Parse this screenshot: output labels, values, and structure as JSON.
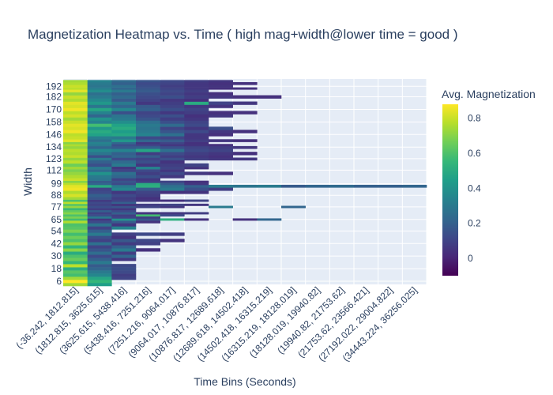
{
  "chart_data": {
    "type": "heatmap",
    "title": "Magnetization Heatmap vs. Time ( high mag+width@lower time = good )",
    "xlabel": "Time Bins (Seconds)",
    "ylabel": "Width",
    "colorbar_title": "Avg. Magnetization",
    "colorscale": "Viridis",
    "colorscale_stops": [
      "#440154",
      "#482878",
      "#3e4989",
      "#31688e",
      "#26828e",
      "#1f9e89",
      "#35b779",
      "#6ece58",
      "#b5de2b",
      "#fde725"
    ],
    "color_range": [
      -0.1,
      0.88
    ],
    "colorbar_ticks": [
      "0",
      "0.2",
      "0.4",
      "0.6",
      "0.8"
    ],
    "colorbar_tick_values": [
      0,
      0.2,
      0.4,
      0.6,
      0.8
    ],
    "x_categories": [
      "(-36.242, 1812.815]",
      "(1812.815, 3625.615]",
      "(3625.615, 5438.416]",
      "(5438.416, 7251.216]",
      "(7251.216, 9064.017]",
      "(9064.017, 10876.817]",
      "(10876.817, 12689.618]",
      "(12689.618, 14502.418]",
      "(14502.418, 16315.219]",
      "(16315.219, 18128.019]",
      "(18128.019, 19940.82]",
      "(19940.82, 21753.62]",
      "(21753.62, 23566.421]",
      "(27192.022, 29004.822]",
      "(34443.224, 36256.025]"
    ],
    "y_tick_labels": [
      "192",
      "182",
      "170",
      "158",
      "146",
      "134",
      "123",
      "112",
      "99",
      "88",
      "77",
      "65",
      "54",
      "42",
      "30",
      "18",
      "6"
    ],
    "y_tick_values": [
      192,
      182,
      170,
      158,
      146,
      134,
      123,
      112,
      99,
      88,
      77,
      65,
      54,
      42,
      30,
      18,
      6
    ],
    "y_range": [
      3,
      199
    ],
    "widths": [
      3,
      6,
      9,
      12,
      15,
      18,
      21,
      24,
      27,
      30,
      33,
      36,
      39,
      42,
      45,
      48,
      51,
      54,
      57,
      60,
      63,
      65,
      67,
      69,
      71,
      73,
      75,
      77,
      79,
      81,
      83,
      85,
      88,
      91,
      94,
      97,
      99,
      101,
      103,
      106,
      109,
      112,
      114,
      117,
      120,
      123,
      125,
      128,
      131,
      134,
      136,
      138,
      140,
      143,
      146,
      149,
      152,
      155,
      158,
      161,
      164,
      167,
      170,
      173,
      176,
      179,
      182,
      185,
      188,
      190,
      192,
      195,
      197
    ],
    "magnetization_rows": [
      [
        0.74,
        0.45,
        null,
        null,
        null,
        null,
        null,
        null,
        null,
        null,
        null,
        null,
        null,
        null,
        null
      ],
      [
        0.88,
        0.55,
        null,
        null,
        null,
        null,
        null,
        null,
        null,
        null,
        null,
        null,
        null,
        null,
        null
      ],
      [
        0.74,
        0.48,
        0.1,
        null,
        null,
        null,
        null,
        null,
        null,
        null,
        null,
        null,
        null,
        null,
        null
      ],
      [
        0.58,
        0.35,
        0.08,
        null,
        null,
        null,
        null,
        null,
        null,
        null,
        null,
        null,
        null,
        null,
        null
      ],
      [
        0.62,
        0.3,
        0.12,
        null,
        null,
        null,
        null,
        null,
        null,
        null,
        null,
        null,
        null,
        null,
        null
      ],
      [
        0.52,
        0.22,
        0.14,
        null,
        null,
        null,
        null,
        null,
        null,
        null,
        null,
        null,
        null,
        null,
        null
      ],
      [
        0.78,
        0.18,
        0.12,
        null,
        null,
        null,
        null,
        null,
        null,
        null,
        null,
        null,
        null,
        null,
        null
      ],
      [
        0.55,
        0.3,
        null,
        null,
        null,
        null,
        null,
        null,
        null,
        null,
        null,
        null,
        null,
        null,
        null
      ],
      [
        0.65,
        0.2,
        0.06,
        null,
        null,
        null,
        null,
        null,
        null,
        null,
        null,
        null,
        null,
        null,
        null
      ],
      [
        0.6,
        0.12,
        0.22,
        null,
        null,
        null,
        null,
        null,
        null,
        null,
        null,
        null,
        null,
        null,
        null
      ],
      [
        0.5,
        0.25,
        0.08,
        null,
        null,
        null,
        null,
        null,
        null,
        null,
        null,
        null,
        null,
        null,
        null
      ],
      [
        0.7,
        0.16,
        0.3,
        0.04,
        null,
        null,
        null,
        null,
        null,
        null,
        null,
        null,
        null,
        null,
        null
      ],
      [
        0.54,
        0.1,
        0.2,
        null,
        null,
        null,
        null,
        null,
        null,
        null,
        null,
        null,
        null,
        null,
        null
      ],
      [
        0.72,
        0.26,
        0.07,
        0.09,
        null,
        null,
        null,
        null,
        null,
        null,
        null,
        null,
        null,
        null,
        null
      ],
      [
        0.6,
        0.09,
        0.17,
        0.11,
        0.05,
        null,
        null,
        null,
        null,
        null,
        null,
        null,
        null,
        null,
        null
      ],
      [
        0.66,
        0.14,
        0.05,
        null,
        null,
        null,
        null,
        null,
        null,
        null,
        null,
        null,
        null,
        null,
        null
      ],
      [
        0.58,
        0.3,
        0.09,
        0.12,
        0.08,
        null,
        null,
        null,
        null,
        null,
        null,
        null,
        null,
        null,
        null
      ],
      [
        0.68,
        0.2,
        null,
        null,
        null,
        null,
        null,
        null,
        null,
        null,
        null,
        null,
        null,
        null,
        null
      ],
      [
        0.62,
        0.1,
        0.34,
        null,
        null,
        null,
        null,
        null,
        null,
        null,
        null,
        null,
        null,
        null,
        null
      ],
      [
        0.6,
        0.28,
        0.06,
        null,
        null,
        null,
        null,
        null,
        null,
        null,
        null,
        null,
        null,
        null,
        null
      ],
      [
        0.76,
        0.12,
        0.18,
        0.05,
        null,
        null,
        null,
        null,
        null,
        null,
        null,
        null,
        null,
        null,
        null
      ],
      [
        0.58,
        0.06,
        0.4,
        0.16,
        0.52,
        0.04,
        null,
        0.04,
        0.22,
        null,
        null,
        null,
        null,
        null,
        null
      ],
      [
        0.68,
        0.3,
        0.1,
        0.08,
        null,
        null,
        null,
        null,
        null,
        null,
        null,
        null,
        null,
        null,
        null
      ],
      [
        0.6,
        0.14,
        0.08,
        0.58,
        0.12,
        null,
        null,
        null,
        null,
        null,
        null,
        null,
        null,
        null,
        null
      ],
      [
        0.7,
        0.09,
        0.2,
        0.05,
        0.06,
        0.08,
        null,
        null,
        null,
        null,
        null,
        null,
        null,
        null,
        null
      ],
      [
        0.64,
        0.2,
        0.12,
        null,
        null,
        null,
        null,
        null,
        null,
        null,
        null,
        null,
        null,
        null,
        null
      ],
      [
        0.56,
        0.08,
        0.06,
        null,
        null,
        null,
        null,
        null,
        null,
        null,
        null,
        null,
        null,
        null,
        null
      ],
      [
        0.72,
        0.14,
        0.16,
        0.1,
        0.06,
        null,
        0.3,
        null,
        null,
        0.22,
        null,
        null,
        null,
        null,
        null
      ],
      [
        0.62,
        0.1,
        0.05,
        0.08,
        0.1,
        0.06,
        null,
        null,
        null,
        null,
        null,
        null,
        null,
        null,
        null
      ],
      [
        0.78,
        0.12,
        0.2,
        null,
        null,
        null,
        null,
        null,
        null,
        null,
        null,
        null,
        null,
        null,
        null
      ],
      [
        0.6,
        0.07,
        0.1,
        0.06,
        0.04,
        0.1,
        null,
        null,
        null,
        null,
        null,
        null,
        null,
        null,
        null
      ],
      [
        0.74,
        0.16,
        0.08,
        0.04,
        null,
        null,
        null,
        null,
        null,
        null,
        null,
        null,
        null,
        null,
        null
      ],
      [
        0.82,
        0.2,
        0.12,
        0.08,
        null,
        null,
        null,
        null,
        null,
        null,
        null,
        null,
        null,
        null,
        null
      ],
      [
        0.76,
        0.12,
        0.06,
        0.1,
        0.04,
        0.05,
        null,
        null,
        null,
        null,
        null,
        null,
        null,
        null,
        null
      ],
      [
        0.86,
        0.1,
        0.35,
        0.18,
        0.3,
        0.14,
        0.08,
        null,
        null,
        null,
        null,
        null,
        null,
        null,
        null
      ],
      [
        0.84,
        0.5,
        0.3,
        0.52,
        0.26,
        0.2,
        0.3,
        0.28,
        0.3,
        0.18,
        0.22,
        0.24,
        0.2,
        0.2,
        0.22
      ],
      [
        0.78,
        0.22,
        0.12,
        0.5,
        0.18,
        0.06,
        null,
        null,
        null,
        null,
        null,
        null,
        null,
        null,
        null
      ],
      [
        0.7,
        0.18,
        0.16,
        0.08,
        0.1,
        0.04,
        null,
        null,
        null,
        null,
        null,
        null,
        null,
        null,
        null
      ],
      [
        0.8,
        0.28,
        0.1,
        0.06,
        null,
        null,
        null,
        null,
        null,
        null,
        null,
        null,
        null,
        null,
        null
      ],
      [
        0.76,
        0.3,
        0.22,
        0.14,
        0.06,
        null,
        null,
        null,
        null,
        null,
        null,
        null,
        null,
        null,
        null
      ],
      [
        0.72,
        0.4,
        0.26,
        0.08,
        0.12,
        0.06,
        0.04,
        null,
        null,
        null,
        null,
        null,
        null,
        null,
        null
      ],
      [
        0.68,
        0.24,
        0.1,
        0.12,
        0.06,
        null,
        null,
        null,
        null,
        null,
        null,
        null,
        null,
        null,
        null
      ],
      [
        0.74,
        0.3,
        0.06,
        0.34,
        0.1,
        0.05,
        null,
        null,
        null,
        null,
        null,
        null,
        null,
        null,
        null
      ],
      [
        0.66,
        0.14,
        0.3,
        0.06,
        0.08,
        0.1,
        null,
        null,
        null,
        null,
        null,
        null,
        null,
        null,
        null
      ],
      [
        0.78,
        0.2,
        0.24,
        0.14,
        0.05,
        null,
        null,
        null,
        null,
        null,
        null,
        null,
        null,
        null,
        null
      ],
      [
        0.72,
        0.3,
        0.12,
        0.1,
        0.14,
        0.08,
        0.06,
        0.06,
        null,
        null,
        null,
        null,
        null,
        null,
        null
      ],
      [
        0.8,
        0.14,
        0.22,
        0.18,
        0.08,
        0.06,
        0.04,
        null,
        null,
        null,
        null,
        null,
        null,
        null,
        null
      ],
      [
        0.76,
        0.28,
        0.2,
        0.08,
        0.12,
        0.08,
        0.06,
        0.04,
        null,
        null,
        null,
        null,
        null,
        null,
        null
      ],
      [
        0.78,
        0.36,
        0.34,
        0.48,
        0.26,
        0.12,
        0.1,
        null,
        null,
        null,
        null,
        null,
        null,
        null,
        null
      ],
      [
        0.72,
        0.22,
        0.18,
        0.2,
        0.14,
        0.1,
        0.08,
        0.06,
        null,
        null,
        null,
        null,
        null,
        null,
        null
      ],
      [
        0.76,
        0.3,
        0.14,
        0.1,
        0.06,
        0.05,
        0.04,
        null,
        null,
        null,
        null,
        null,
        null,
        null,
        null
      ],
      [
        0.7,
        0.34,
        0.22,
        0.06,
        0.1,
        0.04,
        null,
        null,
        null,
        null,
        null,
        null,
        null,
        null,
        null
      ],
      [
        0.84,
        0.26,
        0.42,
        0.22,
        0.18,
        0.08,
        0.06,
        0.04,
        null,
        null,
        null,
        null,
        null,
        null,
        null
      ],
      [
        0.8,
        0.32,
        0.3,
        0.12,
        0.1,
        0.06,
        null,
        null,
        null,
        null,
        null,
        null,
        null,
        null,
        null
      ],
      [
        0.78,
        0.46,
        0.48,
        0.34,
        0.26,
        0.06,
        0.04,
        null,
        null,
        null,
        null,
        null,
        null,
        null,
        null
      ],
      [
        0.86,
        0.5,
        0.44,
        0.3,
        0.16,
        0.12,
        0.06,
        0.04,
        null,
        null,
        null,
        null,
        null,
        null,
        null
      ],
      [
        0.82,
        0.42,
        0.5,
        0.28,
        0.1,
        0.06,
        0.14,
        null,
        null,
        null,
        null,
        null,
        null,
        null,
        null
      ],
      [
        0.84,
        0.58,
        0.46,
        0.3,
        0.24,
        0.12,
        null,
        null,
        null,
        null,
        null,
        null,
        null,
        null,
        null
      ],
      [
        0.8,
        0.34,
        0.38,
        0.26,
        0.14,
        0.1,
        null,
        null,
        null,
        null,
        null,
        null,
        null,
        null,
        null
      ],
      [
        0.74,
        0.4,
        0.3,
        0.16,
        0.08,
        0.06,
        null,
        null,
        null,
        null,
        null,
        null,
        null,
        null,
        null
      ],
      [
        0.82,
        0.22,
        0.28,
        0.12,
        0.14,
        0.04,
        0.06,
        null,
        null,
        null,
        null,
        null,
        null,
        null,
        null
      ],
      [
        0.78,
        0.34,
        0.14,
        0.1,
        0.06,
        0.08,
        0.04,
        0.04,
        null,
        null,
        null,
        null,
        null,
        null,
        null
      ],
      [
        0.86,
        0.48,
        0.36,
        0.2,
        0.14,
        0.1,
        null,
        null,
        null,
        null,
        null,
        null,
        null,
        null,
        null
      ],
      [
        0.82,
        0.28,
        0.22,
        0.18,
        0.1,
        0.06,
        0.05,
        null,
        null,
        null,
        null,
        null,
        null,
        null,
        null
      ],
      [
        0.84,
        0.42,
        0.3,
        0.06,
        0.08,
        0.5,
        0.1,
        0.06,
        null,
        null,
        null,
        null,
        null,
        null,
        null
      ],
      [
        0.76,
        0.36,
        0.18,
        0.1,
        0.06,
        0.04,
        null,
        null,
        null,
        null,
        null,
        null,
        null,
        null,
        null
      ],
      [
        0.8,
        0.3,
        0.24,
        0.12,
        0.14,
        0.08,
        0.06,
        0.04,
        0.04,
        null,
        null,
        null,
        null,
        null,
        null
      ],
      [
        0.72,
        0.26,
        0.2,
        0.14,
        0.1,
        0.06,
        0.04,
        null,
        null,
        null,
        null,
        null,
        null,
        null,
        null
      ],
      [
        0.84,
        0.38,
        0.3,
        0.18,
        0.12,
        0.08,
        null,
        null,
        null,
        null,
        null,
        null,
        null,
        null,
        null
      ],
      [
        0.78,
        0.32,
        0.22,
        0.16,
        0.1,
        0.06,
        0.04,
        0.04,
        null,
        null,
        null,
        null,
        null,
        null,
        null
      ],
      [
        0.8,
        0.28,
        0.26,
        0.14,
        0.08,
        0.06,
        0.05,
        null,
        null,
        null,
        null,
        null,
        null,
        null,
        null
      ],
      [
        0.76,
        0.3,
        0.2,
        0.12,
        0.1,
        0.06,
        0.04,
        0.04,
        null,
        null,
        null,
        null,
        null,
        null,
        null
      ],
      [
        0.74,
        0.34,
        0.24,
        0.16,
        0.12,
        0.08,
        0.06,
        null,
        null,
        null,
        null,
        null,
        null,
        null,
        null
      ]
    ]
  }
}
